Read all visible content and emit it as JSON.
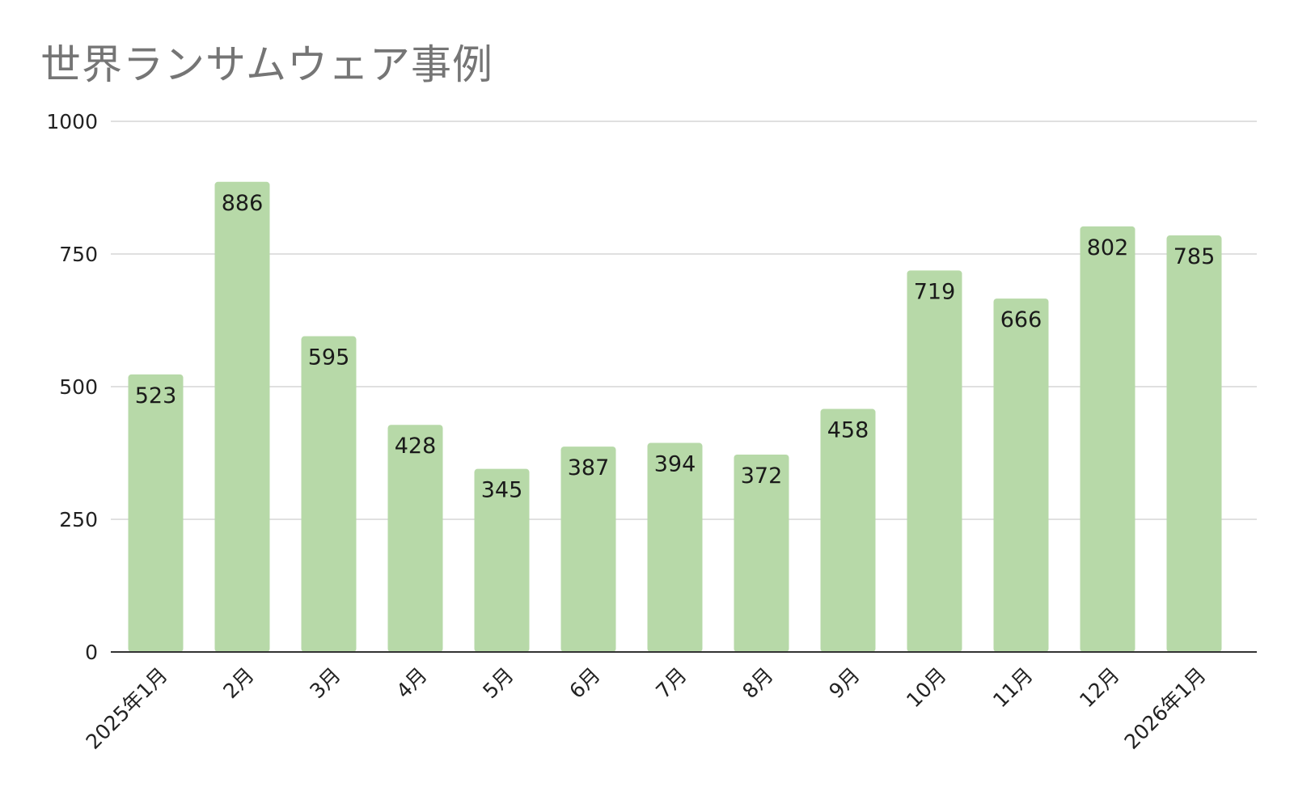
{
  "colors": {
    "bar": "#b7d9a8",
    "grid": "#d6d6d6",
    "axis": "#333333",
    "title": "#757575"
  },
  "chart_data": {
    "type": "bar",
    "title": "世界ランサムウェア事例",
    "xlabel": "",
    "ylabel": "",
    "ylim": [
      0,
      1000
    ],
    "yticks": [
      0,
      250,
      500,
      750,
      1000
    ],
    "grid": true,
    "legend": "none",
    "categories": [
      "2025年1月",
      "2月",
      "3月",
      "4月",
      "5月",
      "6月",
      "7月",
      "8月",
      "9月",
      "10月",
      "11月",
      "12月",
      "2026年1月"
    ],
    "values": [
      523,
      886,
      595,
      428,
      345,
      387,
      394,
      372,
      458,
      719,
      666,
      802,
      785
    ]
  }
}
